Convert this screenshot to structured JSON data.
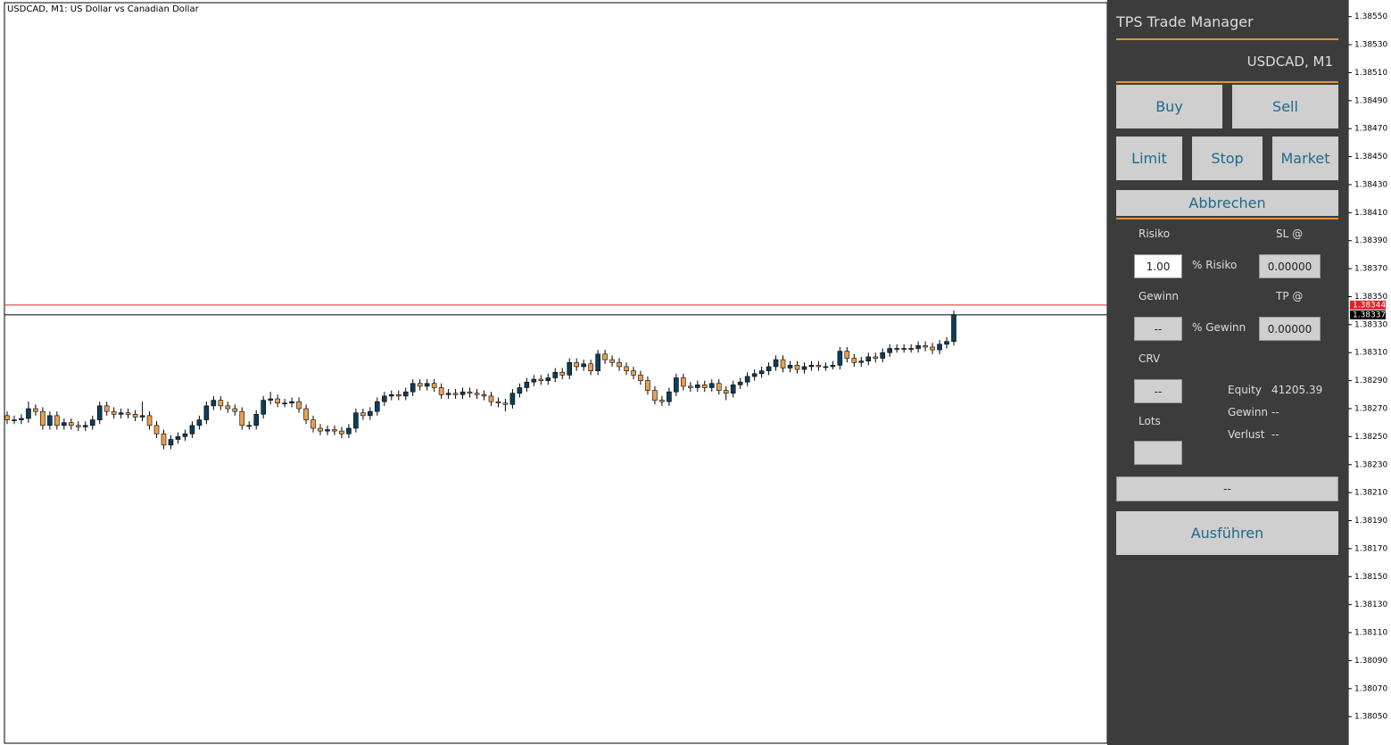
{
  "chart_data": {
    "type": "candlestick",
    "title": "USDCAD, M1:  US Dollar vs Canadian Dollar",
    "open": [
      1.38265,
      1.38262,
      1.38262,
      1.38263,
      1.3827,
      1.38268,
      1.38258,
      1.38265,
      1.38258,
      1.3826,
      1.38258,
      1.38257,
      1.38258,
      1.38262,
      1.38272,
      1.38268,
      1.38266,
      1.38267,
      1.38266,
      1.38264,
      1.38265,
      1.38258,
      1.38252,
      1.38244,
      1.38248,
      1.3825,
      1.38252,
      1.38258,
      1.38262,
      1.38272,
      1.38276,
      1.38272,
      1.3827,
      1.38268,
      1.38258,
      1.38258,
      1.38266,
      1.38276,
      1.38277,
      1.38274,
      1.38274,
      1.38275,
      1.3827,
      1.38262,
      1.38256,
      1.38254,
      1.38255,
      1.38254,
      1.38252,
      1.38256,
      1.38267,
      1.38265,
      1.38268,
      1.38275,
      1.38279,
      1.3828,
      1.38279,
      1.38282,
      1.38288,
      1.38286,
      1.38288,
      1.38285,
      1.3828,
      1.38281,
      1.3828,
      1.38282,
      1.38281,
      1.3828,
      1.38279,
      1.38275,
      1.38274,
      1.38273,
      1.38281,
      1.38285,
      1.38289,
      1.38291,
      1.3829,
      1.38292,
      1.38296,
      1.38294,
      1.38303,
      1.383,
      1.38302,
      1.38297,
      1.38309,
      1.38305,
      1.38303,
      1.383,
      1.38297,
      1.38294,
      1.3829,
      1.38283,
      1.38276,
      1.38275,
      1.38282,
      1.38292,
      1.38286,
      1.38285,
      1.38287,
      1.38285,
      1.38288,
      1.38283,
      1.38281,
      1.38287,
      1.38289,
      1.38293,
      1.38295,
      1.38297,
      1.383,
      1.38305,
      1.38299,
      1.38301,
      1.38298,
      1.383,
      1.38301,
      1.383,
      1.383,
      1.38301,
      1.38311,
      1.38306,
      1.38303,
      1.38304,
      1.38307,
      1.38306,
      1.3831,
      1.38313,
      1.38313,
      1.38313,
      1.38313,
      1.38315,
      1.38314,
      1.38312,
      1.38316,
      1.38318
    ],
    "high": [
      1.38268,
      1.38265,
      1.38266,
      1.38275,
      1.38273,
      1.38271,
      1.38268,
      1.38268,
      1.38263,
      1.38263,
      1.38261,
      1.38261,
      1.38265,
      1.38275,
      1.38275,
      1.38271,
      1.3827,
      1.3827,
      1.38269,
      1.38275,
      1.38268,
      1.38261,
      1.38255,
      1.38251,
      1.38253,
      1.38255,
      1.38261,
      1.38265,
      1.38275,
      1.38279,
      1.38279,
      1.38275,
      1.38273,
      1.38271,
      1.38261,
      1.38269,
      1.38279,
      1.38282,
      1.3828,
      1.38277,
      1.38278,
      1.38278,
      1.38273,
      1.38265,
      1.38259,
      1.38258,
      1.38258,
      1.38257,
      1.38259,
      1.3827,
      1.3827,
      1.38271,
      1.38278,
      1.38282,
      1.38283,
      1.38283,
      1.38285,
      1.38291,
      1.38291,
      1.38291,
      1.38291,
      1.38288,
      1.38284,
      1.38284,
      1.38285,
      1.38285,
      1.38284,
      1.38283,
      1.38282,
      1.38278,
      1.38277,
      1.38284,
      1.38288,
      1.38292,
      1.38294,
      1.38294,
      1.38295,
      1.38299,
      1.38299,
      1.38306,
      1.38306,
      1.38305,
      1.38305,
      1.38312,
      1.38312,
      1.38308,
      1.38306,
      1.38303,
      1.383,
      1.38297,
      1.38293,
      1.38286,
      1.38279,
      1.38285,
      1.38295,
      1.38295,
      1.38289,
      1.3829,
      1.3829,
      1.38291,
      1.38291,
      1.38286,
      1.3829,
      1.38292,
      1.38296,
      1.38298,
      1.383,
      1.38303,
      1.38308,
      1.38308,
      1.38304,
      1.38304,
      1.38303,
      1.38304,
      1.38304,
      1.38303,
      1.38304,
      1.38314,
      1.38314,
      1.38309,
      1.38307,
      1.3831,
      1.3831,
      1.38313,
      1.38316,
      1.38316,
      1.38316,
      1.38316,
      1.38318,
      1.38318,
      1.38317,
      1.38319,
      1.38321,
      1.3834
    ],
    "low": [
      1.38259,
      1.38259,
      1.38259,
      1.3826,
      1.38265,
      1.38255,
      1.38255,
      1.38255,
      1.38255,
      1.38255,
      1.38254,
      1.38254,
      1.38255,
      1.38259,
      1.38265,
      1.38263,
      1.38263,
      1.38263,
      1.38261,
      1.38261,
      1.38255,
      1.38249,
      1.38241,
      1.38241,
      1.38245,
      1.38247,
      1.38249,
      1.38255,
      1.38259,
      1.38269,
      1.38269,
      1.38267,
      1.38265,
      1.38255,
      1.38255,
      1.38255,
      1.38263,
      1.38273,
      1.38271,
      1.38271,
      1.38271,
      1.38267,
      1.38259,
      1.38253,
      1.38251,
      1.38251,
      1.38251,
      1.38249,
      1.38249,
      1.38253,
      1.38262,
      1.38262,
      1.38265,
      1.38272,
      1.38276,
      1.38276,
      1.38276,
      1.38279,
      1.38283,
      1.38283,
      1.38282,
      1.38277,
      1.38277,
      1.38277,
      1.38277,
      1.38278,
      1.38277,
      1.38276,
      1.38272,
      1.38271,
      1.38268,
      1.3827,
      1.38278,
      1.38282,
      1.38286,
      1.38287,
      1.38287,
      1.38289,
      1.38291,
      1.38291,
      1.38297,
      1.38297,
      1.38294,
      1.38294,
      1.38302,
      1.383,
      1.38297,
      1.38294,
      1.38291,
      1.38287,
      1.3828,
      1.38273,
      1.38272,
      1.38272,
      1.38279,
      1.38283,
      1.38282,
      1.38282,
      1.38282,
      1.38282,
      1.3828,
      1.38276,
      1.38278,
      1.38284,
      1.38286,
      1.3829,
      1.38292,
      1.38294,
      1.38297,
      1.38296,
      1.38296,
      1.38295,
      1.38295,
      1.38297,
      1.38297,
      1.38297,
      1.38298,
      1.38298,
      1.38303,
      1.383,
      1.383,
      1.38301,
      1.38303,
      1.38303,
      1.38307,
      1.3831,
      1.3831,
      1.3831,
      1.3831,
      1.38311,
      1.38309,
      1.38309,
      1.38313,
      1.38315
    ],
    "close": [
      1.38262,
      1.38262,
      1.38263,
      1.3827,
      1.38268,
      1.38258,
      1.38265,
      1.38258,
      1.3826,
      1.38258,
      1.38257,
      1.38258,
      1.38262,
      1.38272,
      1.38268,
      1.38266,
      1.38267,
      1.38266,
      1.38264,
      1.38265,
      1.38258,
      1.38252,
      1.38244,
      1.38248,
      1.3825,
      1.38252,
      1.38258,
      1.38262,
      1.38272,
      1.38276,
      1.38272,
      1.3827,
      1.38268,
      1.38258,
      1.38258,
      1.38266,
      1.38276,
      1.38277,
      1.38274,
      1.38274,
      1.38275,
      1.3827,
      1.38262,
      1.38256,
      1.38254,
      1.38255,
      1.38254,
      1.38252,
      1.38256,
      1.38267,
      1.38265,
      1.38268,
      1.38275,
      1.38279,
      1.3828,
      1.38279,
      1.38282,
      1.38288,
      1.38286,
      1.38288,
      1.38285,
      1.3828,
      1.38281,
      1.3828,
      1.38282,
      1.38281,
      1.3828,
      1.38279,
      1.38275,
      1.38274,
      1.38273,
      1.38281,
      1.38285,
      1.38289,
      1.38291,
      1.3829,
      1.38292,
      1.38296,
      1.38294,
      1.38303,
      1.383,
      1.38302,
      1.38297,
      1.38309,
      1.38305,
      1.38303,
      1.383,
      1.38297,
      1.38294,
      1.3829,
      1.38283,
      1.38276,
      1.38275,
      1.38282,
      1.38292,
      1.38286,
      1.38285,
      1.38287,
      1.38285,
      1.38288,
      1.38283,
      1.38281,
      1.38287,
      1.38289,
      1.38293,
      1.38295,
      1.38297,
      1.383,
      1.38305,
      1.38299,
      1.38301,
      1.38298,
      1.383,
      1.38301,
      1.383,
      1.383,
      1.38301,
      1.38311,
      1.38306,
      1.38303,
      1.38304,
      1.38307,
      1.38306,
      1.3831,
      1.38313,
      1.38313,
      1.38313,
      1.38313,
      1.38315,
      1.38314,
      1.38312,
      1.38316,
      1.38318,
      1.38337
    ],
    "up_color": "#0e3d5c",
    "down_color": "#e8a050",
    "ask": 1.38344,
    "bid": 1.38337,
    "ask_color": "#e0202a",
    "bid_color": "#000000",
    "ylim": [
      1.38031,
      1.3856
    ],
    "yticks": [
      {
        "value": 1.3855,
        "label": "1.38550"
      },
      {
        "value": 1.3853,
        "label": "1.38530"
      },
      {
        "value": 1.3851,
        "label": "1.38510"
      },
      {
        "value": 1.3849,
        "label": "1.38490"
      },
      {
        "value": 1.3847,
        "label": "1.38470"
      },
      {
        "value": 1.3845,
        "label": "1.38450"
      },
      {
        "value": 1.3843,
        "label": "1.38430"
      },
      {
        "value": 1.3841,
        "label": "1.38410"
      },
      {
        "value": 1.3839,
        "label": "1.38390"
      },
      {
        "value": 1.3837,
        "label": "1.38370"
      },
      {
        "value": 1.3835,
        "label": "1.38350"
      },
      {
        "value": 1.3833,
        "label": "1.38330"
      },
      {
        "value": 1.3831,
        "label": "1.38310"
      },
      {
        "value": 1.3829,
        "label": "1.38290"
      },
      {
        "value": 1.3827,
        "label": "1.38270"
      },
      {
        "value": 1.3825,
        "label": "1.38250"
      },
      {
        "value": 1.3823,
        "label": "1.38230"
      },
      {
        "value": 1.3821,
        "label": "1.38210"
      },
      {
        "value": 1.3819,
        "label": "1.38190"
      },
      {
        "value": 1.3817,
        "label": "1.38170"
      },
      {
        "value": 1.3815,
        "label": "1.38150"
      },
      {
        "value": 1.3813,
        "label": "1.38130"
      },
      {
        "value": 1.3811,
        "label": "1.38110"
      },
      {
        "value": 1.3809,
        "label": "1.38090"
      },
      {
        "value": 1.3807,
        "label": "1.38070"
      },
      {
        "value": 1.3805,
        "label": "1.38050"
      }
    ]
  },
  "panel": {
    "title": "TPS Trade Manager",
    "symbol": "USDCAD, M1",
    "buy": "Buy",
    "sell": "Sell",
    "limit": "Limit",
    "stop": "Stop",
    "market": "Market",
    "cancel": "Abbrechen",
    "risk_label": "Risiko",
    "sl_label": "SL @",
    "risk_input": "1.00",
    "risk_unit": "% Risiko",
    "sl_input": "0.00000",
    "profit_label": "Gewinn",
    "tp_label": "TP @",
    "profit_input": "--",
    "profit_unit": "% Gewinn",
    "tp_input": "0.00000",
    "crv_label": "CRV",
    "crv_input": "--",
    "lots_label": "Lots",
    "equity_label": "Equity",
    "equity_value": "41205.39",
    "gain_label": "Gewinn",
    "gain_value": "--",
    "loss_label": "Verlust",
    "loss_value": "--",
    "status": "--",
    "execute": "Ausführen"
  }
}
